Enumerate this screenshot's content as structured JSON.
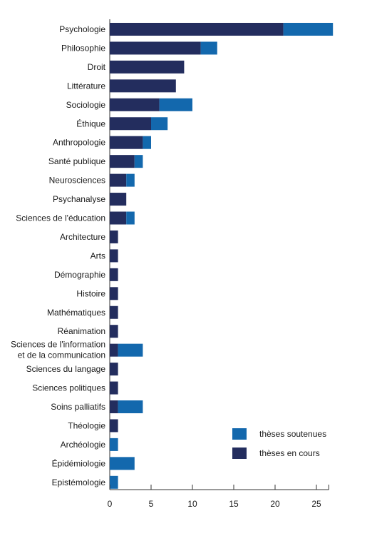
{
  "chart_data": {
    "type": "bar",
    "orientation": "horizontal",
    "stacked": true,
    "categories": [
      [
        "Psychologie"
      ],
      [
        "Philosophie"
      ],
      [
        "Droit"
      ],
      [
        "Littérature"
      ],
      [
        "Sociologie"
      ],
      [
        "Éthique"
      ],
      [
        "Anthropologie"
      ],
      [
        "Santé publique"
      ],
      [
        "Neurosciences"
      ],
      [
        "Psychanalyse"
      ],
      [
        "Sciences de l'éducation"
      ],
      [
        "Architecture"
      ],
      [
        "Arts"
      ],
      [
        "Démographie"
      ],
      [
        "Histoire"
      ],
      [
        "Mathématiques"
      ],
      [
        "Réanimation"
      ],
      [
        "Sciences de l'information",
        "et de la communication"
      ],
      [
        "Sciences du langage"
      ],
      [
        "Sciences politiques"
      ],
      [
        "Soins palliatifs"
      ],
      [
        "Théologie"
      ],
      [
        "Archéologie"
      ],
      [
        "Épidémiologie"
      ],
      [
        "Epistémologie"
      ]
    ],
    "series": [
      {
        "name": "thèses en cours",
        "color": "#232d5e",
        "values": [
          21,
          11,
          9,
          8,
          6,
          5,
          4,
          3,
          2,
          2,
          2,
          1,
          1,
          1,
          1,
          1,
          1,
          1,
          1,
          1,
          1,
          1,
          0,
          0,
          0
        ]
      },
      {
        "name": "thèses soutenues",
        "color": "#1368ad",
        "values": [
          6,
          2,
          0,
          0,
          4,
          2,
          1,
          1,
          1,
          0,
          1,
          0,
          0,
          0,
          0,
          0,
          0,
          3,
          0,
          0,
          3,
          0,
          1,
          3,
          1
        ]
      }
    ],
    "xlim": [
      0,
      26.5
    ],
    "xticks": [
      0,
      5,
      10,
      15,
      20,
      25
    ],
    "legend": {
      "position": "bottom-right",
      "order": [
        "thèses soutenues",
        "thèses en cours"
      ]
    },
    "grid": false
  }
}
